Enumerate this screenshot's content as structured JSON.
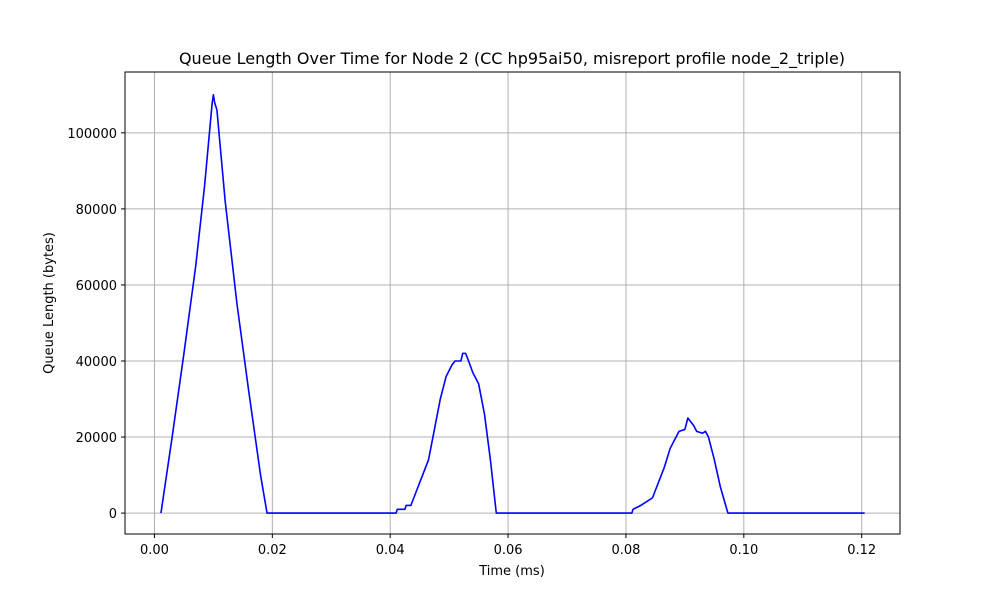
{
  "chart_data": {
    "type": "line",
    "title": "Queue Length Over Time for Node 2 (CC hp95ai50, misreport profile node_2_triple)",
    "xlabel": "Time (ms)",
    "ylabel": "Queue Length (bytes)",
    "xlim": [
      -0.005,
      0.1265
    ],
    "ylim": [
      -5500,
      116000
    ],
    "x_ticks": [
      0.0,
      0.02,
      0.04,
      0.06,
      0.08,
      0.1,
      0.12
    ],
    "x_tick_labels": [
      "0.00",
      "0.02",
      "0.04",
      "0.06",
      "0.08",
      "0.10",
      "0.12"
    ],
    "y_ticks": [
      0,
      20000,
      40000,
      60000,
      80000,
      100000
    ],
    "y_tick_labels": [
      "0",
      "20000",
      "40000",
      "60000",
      "80000",
      "100000"
    ],
    "grid": true,
    "series": [
      {
        "color": "#0000ff",
        "points": [
          [
            0.0011,
            0
          ],
          [
            0.003,
            20000
          ],
          [
            0.005,
            42000
          ],
          [
            0.007,
            65000
          ],
          [
            0.0085,
            86000
          ],
          [
            0.0098,
            108000
          ],
          [
            0.01,
            110000
          ],
          [
            0.0102,
            108000
          ],
          [
            0.0106,
            106000
          ],
          [
            0.012,
            82000
          ],
          [
            0.014,
            55000
          ],
          [
            0.016,
            32000
          ],
          [
            0.018,
            10000
          ],
          [
            0.0191,
            0
          ],
          [
            0.041,
            0
          ],
          [
            0.0412,
            1000
          ],
          [
            0.0425,
            1000
          ],
          [
            0.0427,
            2000
          ],
          [
            0.0435,
            2000
          ],
          [
            0.0445,
            6000
          ],
          [
            0.0455,
            10000
          ],
          [
            0.0465,
            14000
          ],
          [
            0.0475,
            22000
          ],
          [
            0.0485,
            30000
          ],
          [
            0.0495,
            36000
          ],
          [
            0.0505,
            39000
          ],
          [
            0.051,
            40000
          ],
          [
            0.052,
            40000
          ],
          [
            0.0523,
            42000
          ],
          [
            0.0528,
            42000
          ],
          [
            0.0533,
            40000
          ],
          [
            0.054,
            37000
          ],
          [
            0.055,
            34000
          ],
          [
            0.056,
            26000
          ],
          [
            0.057,
            14000
          ],
          [
            0.058,
            0
          ],
          [
            0.081,
            0
          ],
          [
            0.0812,
            1000
          ],
          [
            0.0825,
            2000
          ],
          [
            0.0835,
            3000
          ],
          [
            0.0845,
            4000
          ],
          [
            0.0855,
            8000
          ],
          [
            0.0865,
            12000
          ],
          [
            0.0875,
            17000
          ],
          [
            0.0885,
            20000
          ],
          [
            0.089,
            21500
          ],
          [
            0.09,
            22000
          ],
          [
            0.0905,
            25000
          ],
          [
            0.091,
            24000
          ],
          [
            0.0915,
            23000
          ],
          [
            0.092,
            21500
          ],
          [
            0.093,
            21000
          ],
          [
            0.0935,
            21500
          ],
          [
            0.094,
            20000
          ],
          [
            0.095,
            14000
          ],
          [
            0.096,
            7000
          ],
          [
            0.0973,
            0
          ],
          [
            0.1205,
            0
          ]
        ]
      }
    ]
  }
}
